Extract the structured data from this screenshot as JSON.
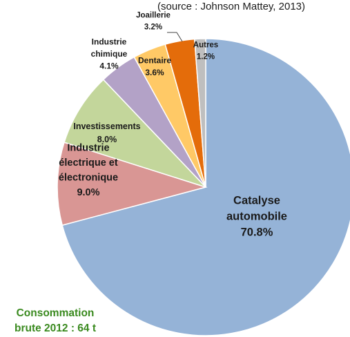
{
  "source": "(source : Johnson Mattey, 2013)",
  "consumption": [
    "Consommation",
    "brute 2012 : 64 t"
  ],
  "chart_data": {
    "type": "pie",
    "title": "",
    "slices": [
      {
        "label_lines": [
          "Catalyse",
          "automobile"
        ],
        "pct_label": "70.8%",
        "value": 70.8,
        "color": "#95b3d7"
      },
      {
        "label_lines": [
          "Industrie",
          "électrique et",
          "électronique"
        ],
        "pct_label": "9.0%",
        "value": 9.0,
        "color": "#d99694"
      },
      {
        "label_lines": [
          "Investissements"
        ],
        "pct_label": "8.0%",
        "value": 8.0,
        "color": "#c3d69b"
      },
      {
        "label_lines": [
          "Industrie",
          "chimique"
        ],
        "pct_label": "4.1%",
        "value": 4.1,
        "color": "#b3a2c7"
      },
      {
        "label_lines": [
          "Dentaire"
        ],
        "pct_label": "3.6%",
        "value": 3.6,
        "color": "#ffc966"
      },
      {
        "label_lines": [
          "Joaillerie"
        ],
        "pct_label": "3.2%",
        "value": 3.2,
        "color": "#e46c0a"
      },
      {
        "label_lines": [
          "Autres"
        ],
        "pct_label": "1.2%",
        "value": 1.2,
        "color": "#bfbfbf"
      }
    ]
  }
}
